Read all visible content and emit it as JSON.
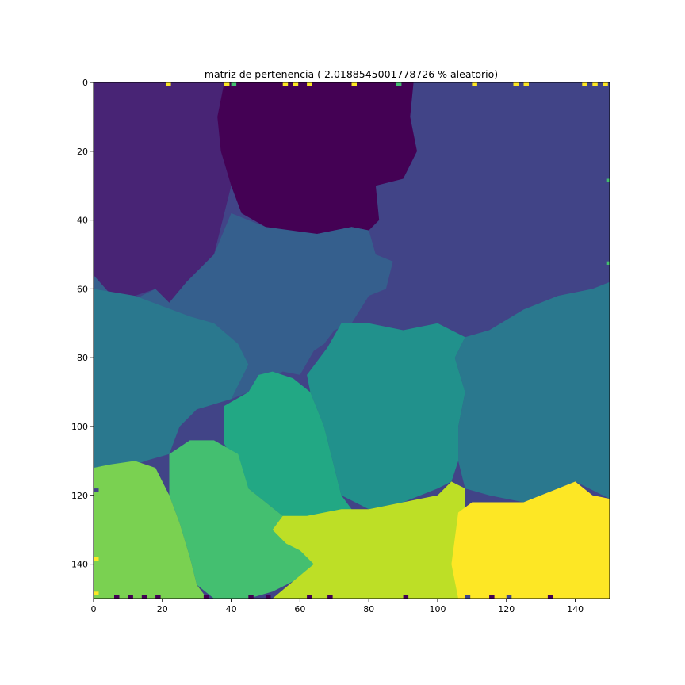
{
  "chart_data": {
    "type": "heatmap",
    "title": "matriz de pertenencia ( 2.0188545001778726 % aleatorio)",
    "xlabel": "",
    "ylabel": "",
    "xlim": [
      0,
      150
    ],
    "ylim": [
      150,
      0
    ],
    "x_ticks": [
      "0",
      "20",
      "40",
      "60",
      "80",
      "100",
      "120",
      "140"
    ],
    "y_ticks": [
      "0",
      "20",
      "40",
      "60",
      "80",
      "100",
      "120",
      "140"
    ],
    "grid": false,
    "colormap": "viridis",
    "colors": {
      "c0": "#440154",
      "c1": "#482475",
      "c2": "#414487",
      "c3": "#355f8d",
      "c4": "#2a788e",
      "c5": "#21918c",
      "c6": "#22a884",
      "c7": "#44bf70",
      "c8": "#7ad151",
      "c9": "#bddf26",
      "c10": "#fde725"
    },
    "regions": [
      {
        "class": "c2",
        "polygon": [
          [
            0,
            0
          ],
          [
            150,
            0
          ],
          [
            150,
            150
          ],
          [
            0,
            150
          ]
        ]
      },
      {
        "class": "c1",
        "polygon": [
          [
            0,
            0
          ],
          [
            38,
            0
          ],
          [
            37,
            8
          ],
          [
            38,
            20
          ],
          [
            40,
            30
          ],
          [
            37,
            42
          ],
          [
            35,
            50
          ],
          [
            30,
            55
          ],
          [
            27,
            58
          ],
          [
            22,
            64
          ],
          [
            20,
            65
          ],
          [
            18,
            60
          ],
          [
            12,
            62
          ],
          [
            8,
            65
          ],
          [
            5,
            62
          ],
          [
            0,
            56
          ]
        ]
      },
      {
        "class": "c0",
        "polygon": [
          [
            38,
            0
          ],
          [
            93,
            0
          ],
          [
            92,
            10
          ],
          [
            94,
            20
          ],
          [
            90,
            28
          ],
          [
            82,
            30
          ],
          [
            83,
            40
          ],
          [
            80,
            43
          ],
          [
            75,
            42
          ],
          [
            65,
            44
          ],
          [
            55,
            45
          ],
          [
            50,
            42
          ],
          [
            43,
            38
          ],
          [
            40,
            30
          ],
          [
            37,
            20
          ],
          [
            36,
            10
          ]
        ]
      },
      {
        "class": "c3",
        "polygon": [
          [
            0,
            56
          ],
          [
            8,
            65
          ],
          [
            18,
            60
          ],
          [
            22,
            64
          ],
          [
            27,
            58
          ],
          [
            35,
            50
          ],
          [
            40,
            38
          ],
          [
            50,
            42
          ],
          [
            65,
            44
          ],
          [
            75,
            42
          ],
          [
            80,
            43
          ],
          [
            82,
            50
          ],
          [
            87,
            52
          ],
          [
            85,
            60
          ],
          [
            80,
            62
          ],
          [
            75,
            70
          ],
          [
            70,
            72
          ],
          [
            67,
            76
          ],
          [
            64,
            78
          ],
          [
            60,
            85
          ],
          [
            55,
            84
          ],
          [
            45,
            90
          ],
          [
            40,
            92
          ],
          [
            30,
            95
          ],
          [
            25,
            100
          ],
          [
            20,
            108
          ],
          [
            10,
            112
          ],
          [
            0,
            112
          ]
        ]
      },
      {
        "class": "c4",
        "polygon": [
          [
            0,
            60
          ],
          [
            12,
            62
          ],
          [
            20,
            65
          ],
          [
            28,
            68
          ],
          [
            35,
            70
          ],
          [
            42,
            76
          ],
          [
            45,
            82
          ],
          [
            40,
            92
          ],
          [
            30,
            95
          ],
          [
            25,
            100
          ],
          [
            22,
            108
          ],
          [
            15,
            110
          ],
          [
            10,
            112
          ],
          [
            0,
            112
          ]
        ]
      },
      {
        "class": "c4",
        "polygon": [
          [
            150,
            58
          ],
          [
            145,
            60
          ],
          [
            135,
            62
          ],
          [
            125,
            66
          ],
          [
            115,
            72
          ],
          [
            108,
            74
          ],
          [
            105,
            80
          ],
          [
            108,
            90
          ],
          [
            106,
            100
          ],
          [
            106,
            110
          ],
          [
            108,
            118
          ],
          [
            115,
            120
          ],
          [
            125,
            122
          ],
          [
            135,
            118
          ],
          [
            140,
            116
          ],
          [
            150,
            121
          ]
        ]
      },
      {
        "class": "c5",
        "polygon": [
          [
            68,
            77
          ],
          [
            72,
            70
          ],
          [
            80,
            70
          ],
          [
            90,
            72
          ],
          [
            100,
            70
          ],
          [
            108,
            74
          ],
          [
            105,
            80
          ],
          [
            108,
            90
          ],
          [
            106,
            100
          ],
          [
            106,
            110
          ],
          [
            104,
            116
          ],
          [
            100,
            118
          ],
          [
            90,
            122
          ],
          [
            80,
            124
          ],
          [
            72,
            120
          ],
          [
            70,
            112
          ],
          [
            67,
            100
          ],
          [
            63,
            90
          ],
          [
            62,
            85
          ]
        ]
      },
      {
        "class": "c6",
        "polygon": [
          [
            38,
            94
          ],
          [
            45,
            90
          ],
          [
            48,
            85
          ],
          [
            52,
            84
          ],
          [
            58,
            86
          ],
          [
            63,
            90
          ],
          [
            67,
            100
          ],
          [
            70,
            112
          ],
          [
            72,
            120
          ],
          [
            75,
            124
          ],
          [
            70,
            126
          ],
          [
            60,
            128
          ],
          [
            55,
            126
          ],
          [
            50,
            122
          ],
          [
            45,
            118
          ],
          [
            42,
            112
          ],
          [
            38,
            105
          ]
        ]
      },
      {
        "class": "c7",
        "polygon": [
          [
            22,
            108
          ],
          [
            28,
            104
          ],
          [
            35,
            104
          ],
          [
            42,
            108
          ],
          [
            45,
            118
          ],
          [
            50,
            122
          ],
          [
            55,
            126
          ],
          [
            57,
            132
          ],
          [
            58,
            135
          ],
          [
            62,
            136
          ],
          [
            65,
            140
          ],
          [
            58,
            145
          ],
          [
            52,
            148
          ],
          [
            45,
            150
          ],
          [
            35,
            150
          ],
          [
            30,
            146
          ],
          [
            28,
            138
          ],
          [
            25,
            128
          ],
          [
            22,
            120
          ]
        ]
      },
      {
        "class": "c8",
        "polygon": [
          [
            0,
            112
          ],
          [
            5,
            111
          ],
          [
            12,
            110
          ],
          [
            18,
            112
          ],
          [
            22,
            120
          ],
          [
            25,
            128
          ],
          [
            28,
            138
          ],
          [
            30,
            146
          ],
          [
            33,
            150
          ],
          [
            0,
            150
          ]
        ]
      },
      {
        "class": "c9",
        "polygon": [
          [
            52,
            130
          ],
          [
            55,
            126
          ],
          [
            62,
            126
          ],
          [
            72,
            124
          ],
          [
            80,
            124
          ],
          [
            90,
            122
          ],
          [
            100,
            120
          ],
          [
            104,
            116
          ],
          [
            108,
            118
          ],
          [
            108,
            125
          ],
          [
            106,
            140
          ],
          [
            106,
            150
          ],
          [
            52,
            150
          ],
          [
            58,
            145
          ],
          [
            64,
            140
          ],
          [
            60,
            136
          ],
          [
            56,
            134
          ]
        ]
      },
      {
        "class": "c10",
        "polygon": [
          [
            106,
            125
          ],
          [
            110,
            122
          ],
          [
            115,
            122
          ],
          [
            125,
            122
          ],
          [
            130,
            120
          ],
          [
            135,
            118
          ],
          [
            140,
            116
          ],
          [
            145,
            120
          ],
          [
            150,
            121
          ],
          [
            150,
            150
          ],
          [
            106,
            150
          ],
          [
            104,
            140
          ]
        ]
      }
    ],
    "speckles": [
      {
        "class": "c10",
        "cells": [
          [
            21,
            0
          ],
          [
            38,
            0
          ],
          [
            55,
            0
          ],
          [
            58,
            0
          ],
          [
            62,
            0
          ],
          [
            75,
            0
          ],
          [
            110,
            0
          ],
          [
            122,
            0
          ],
          [
            125,
            0
          ],
          [
            142,
            0
          ],
          [
            145,
            0
          ],
          [
            148,
            0
          ],
          [
            0,
            138
          ],
          [
            0,
            148
          ],
          [
            149,
            136
          ],
          [
            149,
            144
          ]
        ]
      },
      {
        "class": "c7",
        "cells": [
          [
            40,
            0
          ],
          [
            88,
            0
          ],
          [
            149,
            28
          ],
          [
            149,
            52
          ]
        ]
      },
      {
        "class": "c0",
        "cells": [
          [
            6,
            149
          ],
          [
            10,
            149
          ],
          [
            14,
            149
          ],
          [
            18,
            149
          ],
          [
            32,
            149
          ],
          [
            45,
            149
          ],
          [
            50,
            149
          ],
          [
            62,
            149
          ],
          [
            68,
            149
          ],
          [
            90,
            149
          ],
          [
            115,
            149
          ],
          [
            132,
            149
          ]
        ]
      },
      {
        "class": "c2",
        "cells": [
          [
            108,
            149
          ],
          [
            120,
            149
          ],
          [
            0,
            118
          ]
        ]
      }
    ]
  }
}
